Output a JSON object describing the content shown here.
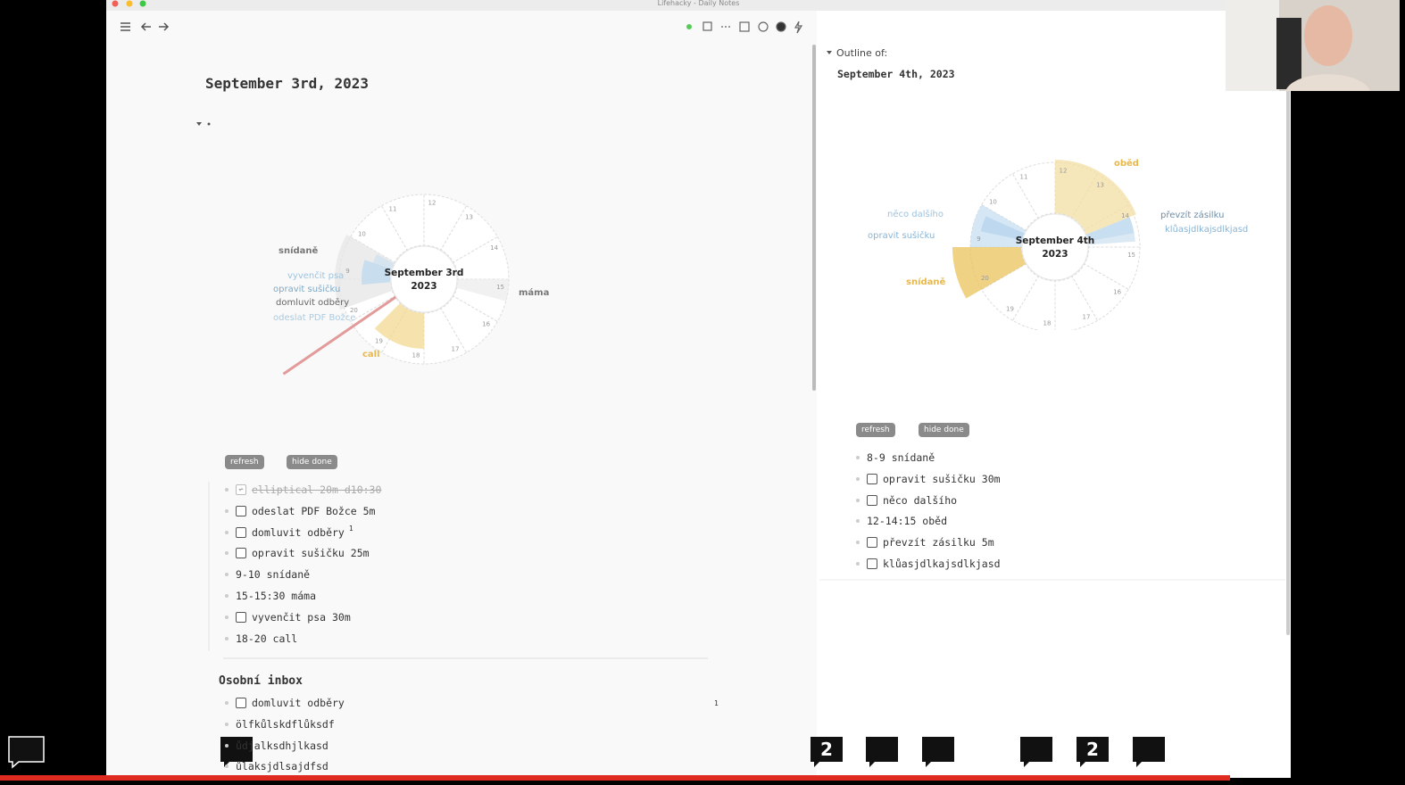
{
  "window_title": "Lifehacky - Daily Notes",
  "left_page": {
    "title": "September 3rd, 2023",
    "chart": {
      "center_title": "September 3rd",
      "center_year": "2023",
      "hour_labels": [
        "9",
        "10",
        "11",
        "12",
        "13",
        "14",
        "15",
        "16",
        "17",
        "18",
        "19",
        "20"
      ],
      "labels": [
        "snídaně",
        "vyvenčit psa",
        "opravit sušičku",
        "domluvit odběry",
        "odeslat PDF Božce",
        "máma",
        "call"
      ]
    },
    "buttons": [
      "refresh",
      "hide done"
    ],
    "items": [
      {
        "text": "elliptical 20m d10:30",
        "checkbox": true,
        "done": true
      },
      {
        "text": "odeslat PDF Božce 5m",
        "checkbox": true,
        "done": false
      },
      {
        "text": "domluvit odběry",
        "checkbox": true,
        "done": false,
        "refs": 1
      },
      {
        "text": "opravit sušičku 25m",
        "checkbox": true,
        "done": false
      },
      {
        "text": "9-10 snídaně",
        "checkbox": false,
        "done": false
      },
      {
        "text": "15-15:30 máma",
        "checkbox": false,
        "done": false
      },
      {
        "text": "vyvenčit psa 30m",
        "checkbox": true,
        "done": false
      },
      {
        "text": "18-20 call",
        "checkbox": false,
        "done": false
      }
    ],
    "inbox": {
      "heading": "Osobní inbox",
      "items": [
        {
          "text": "domluvit odběry",
          "checkbox": true,
          "done": false,
          "refs": 1
        },
        {
          "text": "ölfkůlskdflůksdf",
          "checkbox": false,
          "done": false
        },
        {
          "text": "ůdjalksdhjlkasd",
          "checkbox": false,
          "done": false
        },
        {
          "text": "ůlaksjdlsajdfsd",
          "checkbox": false,
          "done": false
        }
      ]
    }
  },
  "right_page": {
    "outline_label": "Outline of:",
    "title": "September 4th, 2023",
    "chart": {
      "center_title": "September 4th",
      "center_year": "2023",
      "hour_labels": [
        "9",
        "10",
        "11",
        "12",
        "13",
        "14",
        "15",
        "16",
        "17",
        "18",
        "19",
        "20"
      ],
      "labels": [
        "oběd",
        "něco dalšího",
        "opravit sušičku",
        "převzít zásilku",
        "klůasjdlkajsdlkjasd",
        "snídaně"
      ]
    },
    "buttons": [
      "refresh",
      "hide done"
    ],
    "items": [
      {
        "text": "8-9 snídaně",
        "checkbox": false,
        "done": false
      },
      {
        "text": "opravit sušičku 30m",
        "checkbox": true,
        "done": false
      },
      {
        "text": "něco dalšího",
        "checkbox": true,
        "done": false
      },
      {
        "text": "12-14:15 oběd",
        "checkbox": false,
        "done": false
      },
      {
        "text": "převzít zásilku 5m",
        "checkbox": true,
        "done": false
      },
      {
        "text": "klůasjdlkajsdlkjasd",
        "checkbox": true,
        "done": false
      }
    ]
  },
  "comment_badges": [
    "2",
    "2"
  ]
}
